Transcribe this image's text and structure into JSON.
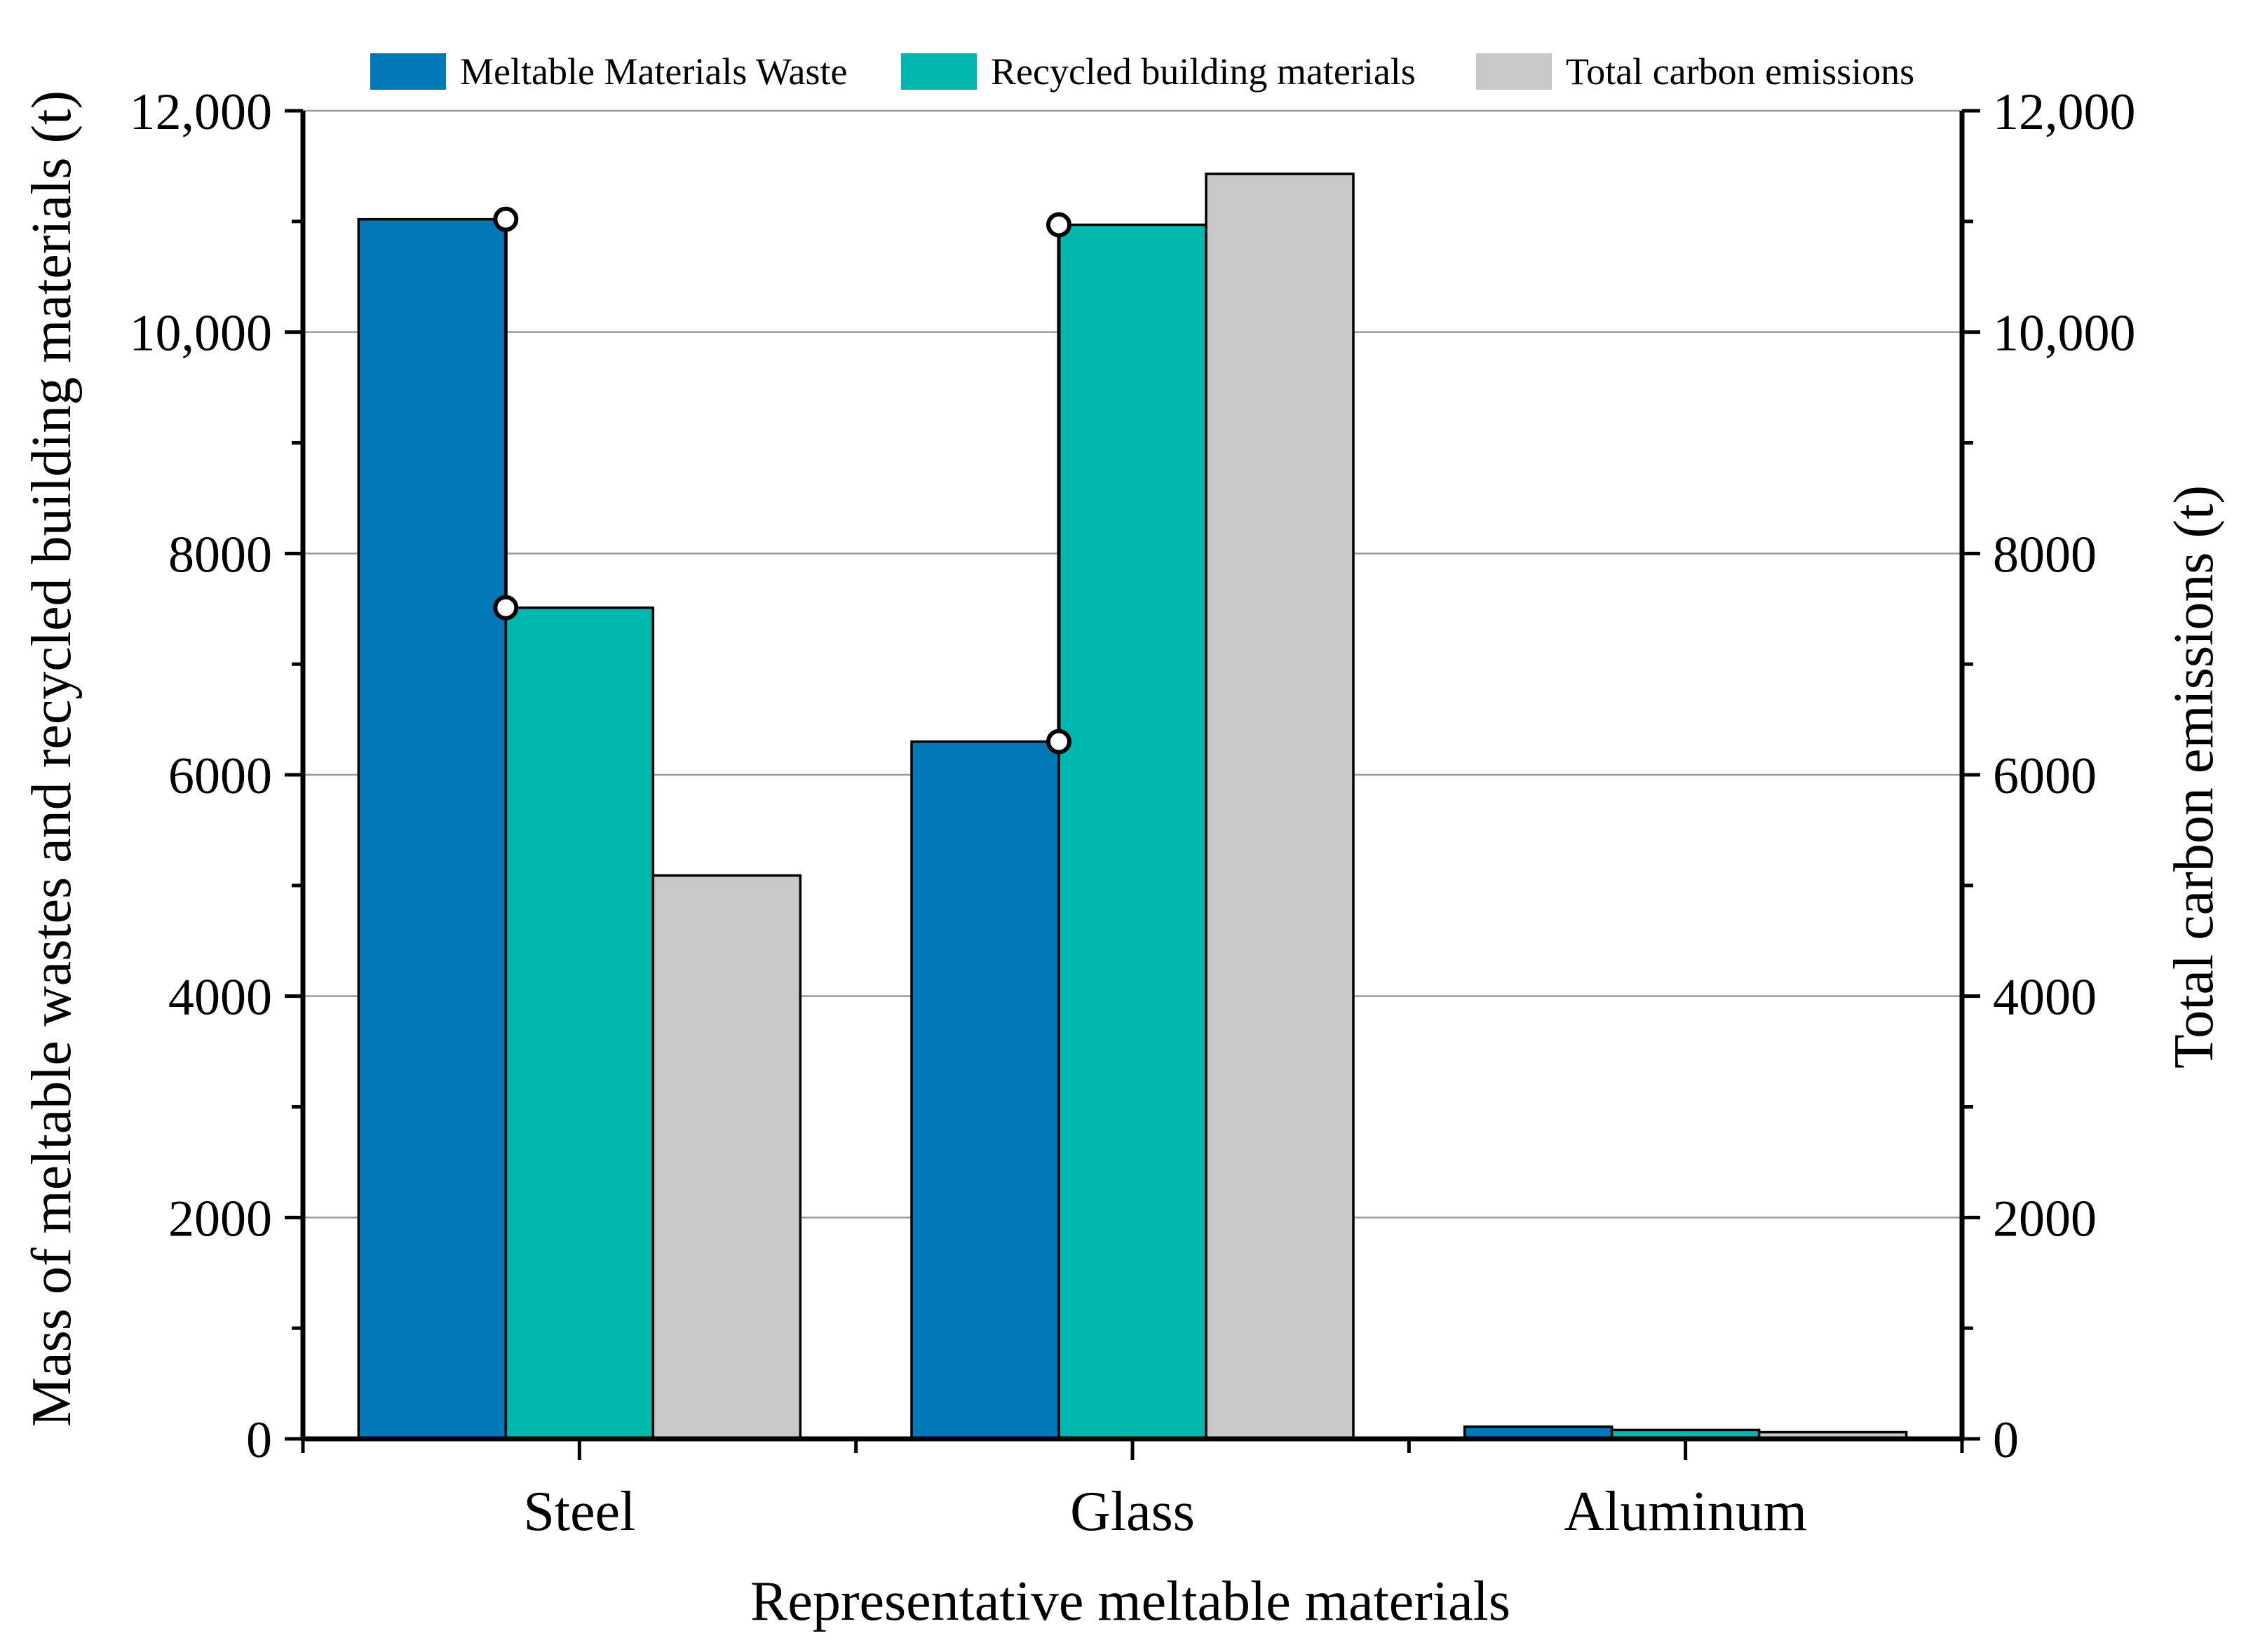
{
  "chart_data": {
    "type": "bar",
    "categories": [
      "Steel",
      "Glass",
      "Aluminum"
    ],
    "series": [
      {
        "name": "Meltable Materials Waste",
        "values": [
          11020,
          6300,
          110
        ],
        "color": "#0179b8",
        "axis": "left"
      },
      {
        "name": "Recycled building materials",
        "values": [
          7510,
          10970,
          80
        ],
        "color": "#00b8ad",
        "axis": "left"
      },
      {
        "name": "Total carbon emissions",
        "values": [
          5090,
          11430,
          60
        ],
        "color": "#c8c8c8",
        "axis": "right"
      }
    ],
    "range_markers": [
      {
        "category": "Steel",
        "low": 7510,
        "high": 11020
      },
      {
        "category": "Glass",
        "low": 6300,
        "high": 10970
      }
    ],
    "xlabel": "Representative meltable materials",
    "ylabel": "Mass of meltable wastes and recycled building materials (t)",
    "ylabel_right": "Total carbon emissions (t)",
    "ylim": [
      0,
      12000
    ],
    "ylim_right": [
      0,
      12000
    ],
    "yticks": [
      0,
      2000,
      4000,
      6000,
      8000,
      10000,
      12000
    ],
    "ytick_labels": [
      "0",
      "2000",
      "4000",
      "6000",
      "8000",
      "10,000",
      "12,000"
    ],
    "grid": true,
    "legend_position": "top"
  }
}
